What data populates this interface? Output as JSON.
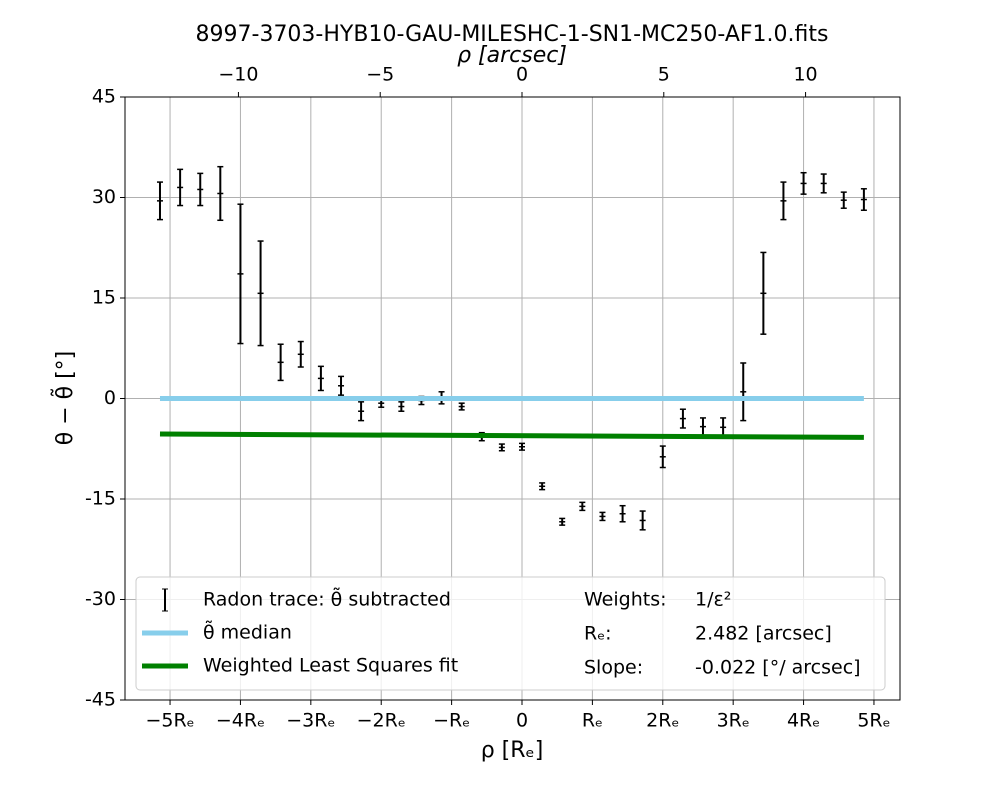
{
  "chart_data": {
    "type": "scatter",
    "title": "8997-3703-HYB10-GAU-MILESHC-1-SN1-MC250-AF1.0.fits",
    "x_label": "ρ [Rₑ]",
    "x2_label": "ρ [arcsec]",
    "y_label": "θ − θ̃ [°]",
    "xlim": [
      -5.64,
      5.37
    ],
    "xticks": [
      {
        "value": -5,
        "label": "−5Rₑ"
      },
      {
        "value": -4,
        "label": "−4Rₑ"
      },
      {
        "value": -3,
        "label": "−3Rₑ"
      },
      {
        "value": -2,
        "label": "−2Rₑ"
      },
      {
        "value": -1,
        "label": "−Rₑ"
      },
      0,
      {
        "value": 1,
        "label": "Rₑ"
      },
      {
        "value": 2,
        "label": "2Rₑ"
      },
      {
        "value": 3,
        "label": "3Rₑ"
      },
      {
        "value": 4,
        "label": "4Rₑ"
      },
      {
        "value": 5,
        "label": "5Rₑ"
      }
    ],
    "x2lim": [
      -14.0,
      13.33
    ],
    "x2ticks": [
      {
        "value": -10,
        "label": "−10"
      },
      {
        "value": -5,
        "label": "−5"
      },
      0,
      5,
      10
    ],
    "ylim": [
      -45,
      45
    ],
    "yticks": [
      45,
      30,
      15,
      0,
      -15,
      -30,
      -45
    ],
    "grid": true,
    "series": [
      {
        "name": "Radon trace: θ̃ subtracted",
        "type": "errorbar",
        "color": "#000000",
        "x": [
          -5.143,
          -4.857,
          -4.571,
          -4.286,
          -4.0,
          -3.714,
          -3.429,
          -3.143,
          -2.857,
          -2.571,
          -2.286,
          -2.0,
          -1.714,
          -1.429,
          -1.143,
          -0.857,
          -0.571,
          -0.286,
          0.0,
          0.286,
          0.571,
          0.857,
          1.143,
          1.429,
          1.714,
          2.0,
          2.286,
          2.571,
          2.857,
          3.143,
          3.429,
          3.714,
          4.0,
          4.286,
          4.571,
          4.857
        ],
        "values": [
          29.5,
          31.5,
          31.2,
          30.6,
          18.6,
          15.7,
          5.4,
          6.6,
          3.0,
          1.9,
          -1.9,
          -0.7,
          -1.2,
          -0.3,
          0.1,
          -1.2,
          -5.7,
          -7.3,
          -7.2,
          -13.1,
          -18.4,
          -16.1,
          -17.6,
          -17.2,
          -18.2,
          -8.7,
          -3.0,
          -4.2,
          -4.3,
          1.0,
          15.7,
          29.5,
          32.1,
          32.1,
          29.6,
          29.7
        ],
        "errors": [
          2.8,
          2.7,
          2.4,
          4.0,
          10.4,
          7.8,
          2.7,
          1.9,
          1.8,
          1.4,
          1.4,
          0.6,
          0.7,
          0.6,
          0.9,
          0.5,
          0.6,
          0.5,
          0.5,
          0.5,
          0.5,
          0.6,
          0.6,
          1.2,
          1.4,
          1.6,
          1.4,
          1.3,
          1.4,
          4.3,
          6.1,
          2.8,
          1.6,
          1.4,
          1.2,
          1.6
        ]
      },
      {
        "name": "θ̃ median",
        "type": "line",
        "color": "#87ceeb",
        "x": [
          -5.143,
          4.857
        ],
        "values": [
          0,
          0
        ]
      },
      {
        "name": "Weighted Least Squares fit",
        "type": "line",
        "color": "#008000",
        "x": [
          -5.143,
          4.857
        ],
        "values": [
          -5.3,
          -5.8
        ]
      }
    ],
    "annotations": [
      [
        "Weights:",
        "1/ε²"
      ],
      [
        "Rₑ:",
        "2.482 [arcsec]"
      ],
      [
        "Slope:",
        "-0.022 [°/ arcsec]"
      ]
    ]
  }
}
